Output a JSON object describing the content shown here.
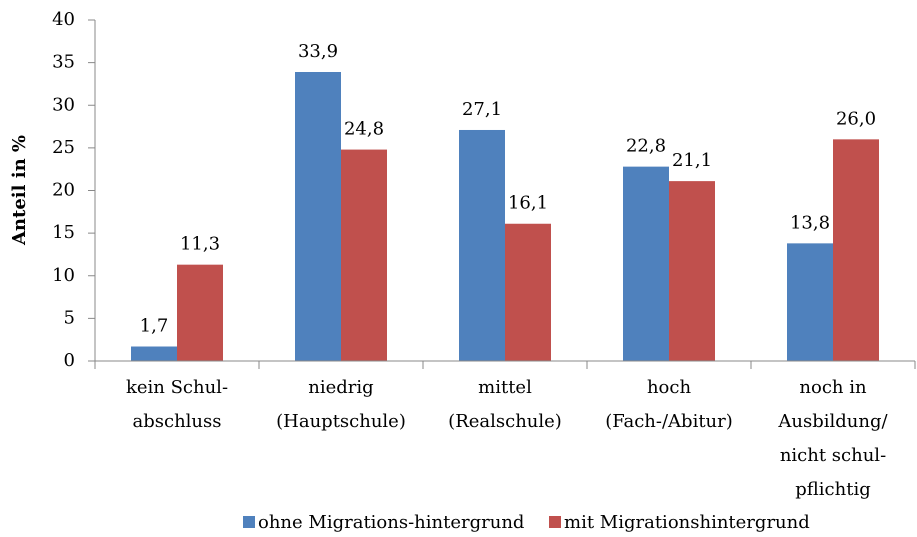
{
  "chart_data": {
    "type": "bar",
    "y_label": "Anteil in %",
    "categories": [
      [
        "kein Schul-",
        "abschluss"
      ],
      [
        "niedrig",
        "(Hauptschule)"
      ],
      [
        "mittel",
        "(Realschule)"
      ],
      [
        "hoch",
        "(Fach-/Abitur)"
      ],
      [
        "noch in",
        "Ausbildung/",
        "nicht schul-",
        "pflichtig"
      ]
    ],
    "series": [
      {
        "name": "ohne Migrations-hintergrund",
        "color": "#4f81bd",
        "values": [
          1.7,
          33.9,
          27.1,
          22.8,
          13.8
        ],
        "value_labels": [
          "1,7",
          "33,9",
          "27,1",
          "22,8",
          "13,8"
        ]
      },
      {
        "name": "mit Migrationshintergrund",
        "color": "#c0504d",
        "values": [
          11.3,
          24.8,
          16.1,
          21.1,
          26.0
        ],
        "value_labels": [
          "11,3",
          "24,8",
          "16,1",
          "21,1",
          "26,0"
        ]
      }
    ],
    "ylim": [
      0,
      40
    ],
    "yticks": [
      0,
      5,
      10,
      15,
      20,
      25,
      30,
      35,
      40
    ],
    "legend": "bottom"
  }
}
